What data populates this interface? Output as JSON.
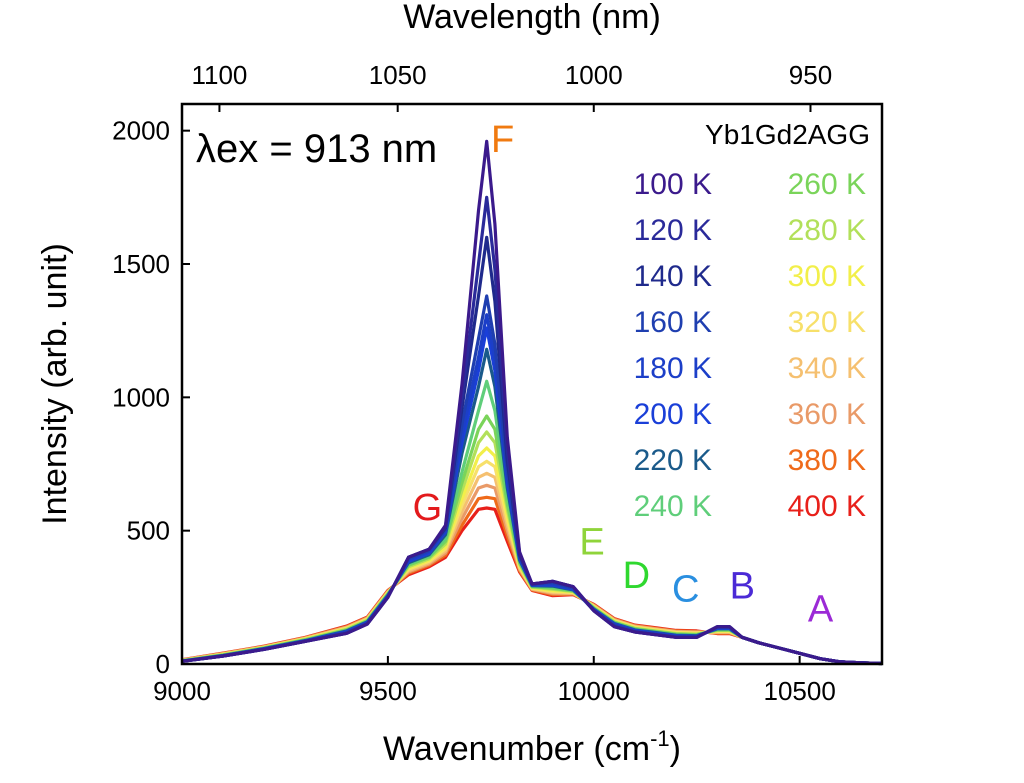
{
  "chart_data": {
    "type": "line",
    "xlabel": "Wavenumber (cm",
    "xlabel_sup": "-1",
    "xlabel_end": ")",
    "ylabel": "Intensity (arb. unit)",
    "top_axis_label": "Wavelength (nm)",
    "xlim": [
      9000,
      10700
    ],
    "ylim": [
      0,
      2100
    ],
    "x_ticks": [
      9000,
      9500,
      10000,
      10500
    ],
    "y_ticks": [
      0,
      500,
      1000,
      1500,
      2000
    ],
    "top_ticks": [
      1100,
      1050,
      1000,
      950
    ],
    "grid": false,
    "legend_title": "Yb1Gd2AGG",
    "legend_placement": "top-right",
    "annotation": "λex = 913 nm",
    "peaks": [
      {
        "label": "G",
        "x": 9560,
        "y": 540,
        "color": "#e31a1c"
      },
      {
        "label": "F",
        "x": 9770,
        "y": 1920,
        "color": "#f07a10"
      },
      {
        "label": "E",
        "x": 9965,
        "y": 410,
        "color": "#8fd43a"
      },
      {
        "label": "D",
        "x": 10070,
        "y": 285,
        "color": "#2fd82f"
      },
      {
        "label": "C",
        "x": 10190,
        "y": 235,
        "color": "#2a8fe0"
      },
      {
        "label": "B",
        "x": 10330,
        "y": 245,
        "color": "#4b2ad6"
      },
      {
        "label": "A",
        "x": 10520,
        "y": 160,
        "color": "#9b2ad6"
      }
    ],
    "x": [
      9000,
      9100,
      9200,
      9300,
      9400,
      9450,
      9500,
      9550,
      9600,
      9640,
      9680,
      9720,
      9740,
      9760,
      9790,
      9820,
      9850,
      9900,
      9950,
      10000,
      10050,
      10100,
      10150,
      10200,
      10250,
      10300,
      10330,
      10360,
      10400,
      10450,
      10500,
      10550,
      10600,
      10650,
      10700
    ],
    "series": [
      {
        "name": "100 K",
        "color": "#3b1a8c",
        "values": [
          10,
          30,
          55,
          85,
          115,
          150,
          250,
          400,
          430,
          520,
          1050,
          1700,
          1960,
          1650,
          850,
          420,
          300,
          310,
          290,
          200,
          140,
          120,
          110,
          100,
          100,
          140,
          140,
          100,
          80,
          60,
          40,
          20,
          8,
          4,
          2
        ]
      },
      {
        "name": "120 K",
        "color": "#2a2a9a",
        "values": [
          10,
          30,
          55,
          85,
          115,
          150,
          250,
          400,
          430,
          515,
          1000,
          1500,
          1750,
          1480,
          800,
          415,
          300,
          310,
          290,
          200,
          140,
          120,
          110,
          100,
          100,
          140,
          140,
          100,
          80,
          60,
          40,
          20,
          8,
          4,
          2
        ]
      },
      {
        "name": "140 K",
        "color": "#1f2a8c",
        "values": [
          10,
          30,
          55,
          85,
          115,
          150,
          250,
          400,
          430,
          510,
          960,
          1380,
          1600,
          1360,
          760,
          410,
          300,
          310,
          290,
          200,
          140,
          120,
          110,
          100,
          100,
          140,
          140,
          100,
          80,
          60,
          40,
          20,
          8,
          4,
          2
        ]
      },
      {
        "name": "160 K",
        "color": "#1f3fb0",
        "values": [
          10,
          30,
          55,
          85,
          118,
          152,
          252,
          395,
          425,
          505,
          900,
          1220,
          1380,
          1200,
          720,
          405,
          300,
          305,
          285,
          200,
          145,
          122,
          112,
          102,
          100,
          138,
          138,
          100,
          80,
          60,
          40,
          20,
          8,
          4,
          2
        ]
      },
      {
        "name": "180 K",
        "color": "#1c3fc8",
        "values": [
          10,
          30,
          56,
          86,
          120,
          154,
          254,
          390,
          420,
          500,
          860,
          1150,
          1310,
          1140,
          700,
          400,
          298,
          300,
          282,
          202,
          148,
          124,
          114,
          104,
          102,
          136,
          136,
          100,
          80,
          60,
          40,
          20,
          8,
          4,
          2
        ]
      },
      {
        "name": "200 K",
        "color": "#1a3fd8",
        "values": [
          11,
          31,
          57,
          87,
          122,
          156,
          256,
          385,
          415,
          495,
          830,
          1100,
          1260,
          1100,
          680,
          395,
          296,
          296,
          280,
          204,
          150,
          126,
          116,
          106,
          104,
          134,
          134,
          100,
          80,
          60,
          40,
          20,
          8,
          4,
          2
        ]
      },
      {
        "name": "220 K",
        "color": "#1a5a8a",
        "values": [
          11,
          32,
          58,
          88,
          124,
          158,
          258,
          380,
          410,
          485,
          790,
          1040,
          1180,
          1040,
          660,
          390,
          294,
          292,
          278,
          206,
          152,
          128,
          118,
          108,
          106,
          132,
          132,
          100,
          80,
          60,
          40,
          20,
          8,
          4,
          2
        ]
      },
      {
        "name": "240 K",
        "color": "#5fce7a",
        "values": [
          12,
          33,
          59,
          90,
          126,
          160,
          260,
          375,
          405,
          470,
          720,
          950,
          1060,
          950,
          630,
          385,
          292,
          288,
          276,
          208,
          154,
          130,
          120,
          110,
          108,
          130,
          130,
          100,
          80,
          60,
          40,
          20,
          8,
          4,
          2
        ]
      },
      {
        "name": "260 K",
        "color": "#7ad45a",
        "values": [
          12,
          34,
          60,
          91,
          128,
          162,
          262,
          370,
          400,
          460,
          680,
          880,
          930,
          880,
          600,
          380,
          290,
          284,
          274,
          210,
          156,
          132,
          122,
          112,
          110,
          128,
          128,
          100,
          80,
          60,
          40,
          20,
          8,
          4,
          2
        ]
      },
      {
        "name": "280 K",
        "color": "#b2e05a",
        "values": [
          13,
          35,
          61,
          92,
          130,
          164,
          264,
          365,
          395,
          450,
          650,
          830,
          870,
          830,
          580,
          375,
          288,
          280,
          272,
          212,
          158,
          134,
          124,
          114,
          112,
          126,
          126,
          100,
          80,
          60,
          40,
          20,
          8,
          4,
          2
        ]
      },
      {
        "name": "300 K",
        "color": "#f2ef4a",
        "values": [
          13,
          36,
          62,
          94,
          132,
          166,
          266,
          360,
          390,
          440,
          620,
          780,
          810,
          780,
          560,
          370,
          286,
          276,
          270,
          214,
          160,
          136,
          126,
          116,
          114,
          124,
          124,
          100,
          80,
          60,
          40,
          20,
          8,
          4,
          2
        ]
      },
      {
        "name": "320 K",
        "color": "#f7e06a",
        "values": [
          14,
          37,
          63,
          95,
          134,
          168,
          268,
          355,
          385,
          432,
          595,
          740,
          760,
          740,
          540,
          365,
          284,
          272,
          268,
          216,
          162,
          138,
          128,
          118,
          116,
          122,
          122,
          100,
          80,
          60,
          40,
          20,
          8,
          4,
          2
        ]
      },
      {
        "name": "340 K",
        "color": "#f5c070",
        "values": [
          14,
          38,
          64,
          96,
          136,
          170,
          270,
          350,
          380,
          424,
          570,
          700,
          715,
          700,
          520,
          360,
          282,
          268,
          266,
          218,
          164,
          140,
          130,
          120,
          118,
          120,
          120,
          100,
          80,
          60,
          40,
          20,
          8,
          4,
          2
        ]
      },
      {
        "name": "360 K",
        "color": "#e99a68",
        "values": [
          15,
          39,
          65,
          98,
          138,
          172,
          272,
          345,
          375,
          416,
          545,
          660,
          670,
          660,
          500,
          355,
          280,
          264,
          264,
          220,
          166,
          142,
          132,
          122,
          120,
          118,
          118,
          100,
          80,
          60,
          40,
          20,
          8,
          4,
          2
        ]
      },
      {
        "name": "380 K",
        "color": "#ef6a1a",
        "values": [
          15,
          40,
          66,
          99,
          140,
          174,
          274,
          340,
          370,
          408,
          520,
          620,
          625,
          620,
          480,
          350,
          278,
          260,
          262,
          222,
          168,
          144,
          134,
          124,
          122,
          116,
          116,
          100,
          80,
          60,
          40,
          20,
          8,
          4,
          2
        ]
      },
      {
        "name": "400 K",
        "color": "#e8201a",
        "values": [
          16,
          41,
          67,
          100,
          142,
          176,
          276,
          335,
          365,
          400,
          500,
          580,
          585,
          580,
          460,
          345,
          276,
          256,
          260,
          224,
          170,
          146,
          136,
          126,
          124,
          114,
          114,
          100,
          80,
          60,
          40,
          20,
          8,
          4,
          2
        ]
      }
    ]
  }
}
